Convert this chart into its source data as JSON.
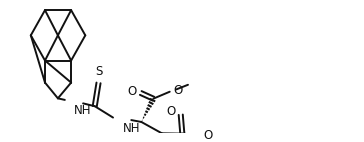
{
  "bg": "#ffffff",
  "lc": "#111111",
  "lw": 1.4,
  "fs": 8.5,
  "figw": 3.64,
  "figh": 1.42,
  "dpi": 100,
  "xlim": [
    0,
    10.5
  ],
  "ylim": [
    0,
    4.2
  ]
}
